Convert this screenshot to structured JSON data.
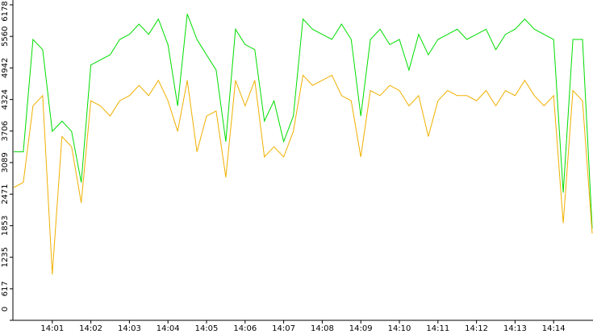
{
  "chart_data": {
    "type": "line",
    "categories": [
      null,
      null,
      null,
      null,
      "14:01",
      null,
      null,
      null,
      "14:02",
      null,
      null,
      null,
      "14:03",
      null,
      null,
      null,
      "14:04",
      null,
      null,
      null,
      "14:05",
      null,
      null,
      null,
      "14:06",
      null,
      null,
      null,
      "14:07",
      null,
      null,
      null,
      "14:08",
      null,
      null,
      null,
      "14:09",
      null,
      null,
      null,
      "14:10",
      null,
      null,
      null,
      "14:11",
      null,
      null,
      null,
      "14:12",
      null,
      null,
      null,
      "14:13",
      null,
      null,
      null,
      "14:14",
      null,
      null,
      null,
      null
    ],
    "series": [
      {
        "color": "#00dd00",
        "values": [
          3300,
          3300,
          5500,
          5300,
          3700,
          3900,
          3700,
          2700,
          5000,
          5100,
          5200,
          5500,
          5600,
          5800,
          5600,
          5900,
          5400,
          4200,
          6000,
          5500,
          5200,
          4900,
          3500,
          5700,
          5400,
          5300,
          3900,
          4300,
          3500,
          4000,
          5900,
          5700,
          5600,
          5500,
          5800,
          5500,
          4000,
          5500,
          5700,
          5400,
          5500,
          4900,
          5600,
          5200,
          5500,
          5600,
          5700,
          5500,
          5600,
          5700,
          5300,
          5600,
          5700,
          5900,
          5700,
          5600,
          5500,
          2500,
          5500,
          5500,
          1800
        ]
      },
      {
        "color": "#f0b000",
        "values": [
          2600,
          2700,
          4200,
          4400,
          900,
          3600,
          3400,
          2300,
          4300,
          4200,
          4000,
          4300,
          4400,
          4600,
          4400,
          4700,
          4300,
          3700,
          4700,
          3300,
          4000,
          4100,
          2800,
          4700,
          4200,
          4700,
          3200,
          3400,
          3200,
          3700,
          4800,
          4600,
          4700,
          4800,
          4400,
          4300,
          3200,
          4500,
          4400,
          4600,
          4500,
          4200,
          4400,
          3600,
          4300,
          4500,
          4400,
          4400,
          4300,
          4500,
          4200,
          4500,
          4400,
          4700,
          4400,
          4200,
          4400,
          1900,
          4500,
          4300,
          1700
        ]
      }
    ],
    "ylim": [
      0,
      6178
    ],
    "yticks": [
      0,
      617,
      1235,
      1853,
      2471,
      3089,
      3706,
      4324,
      4942,
      5560,
      6178
    ]
  }
}
